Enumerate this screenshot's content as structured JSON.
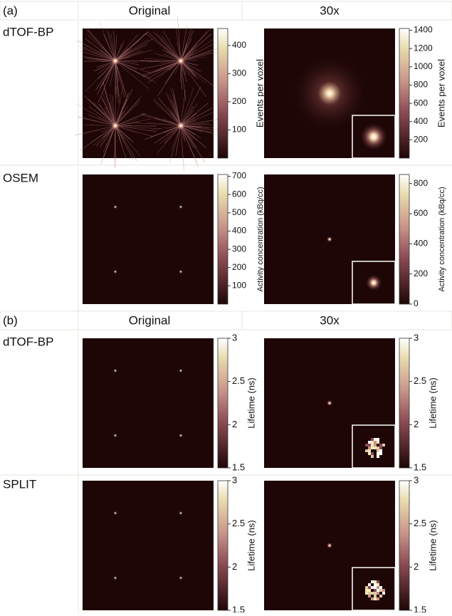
{
  "panels": [
    {
      "label": "(a)",
      "columns": [
        "Original",
        "30x"
      ],
      "rows": [
        {
          "name": "dTOF-BP",
          "colorbars": [
            {
              "label": "Events per voxel",
              "lim": [
                0,
                460
              ],
              "ticks": [
                100,
                200,
                300,
                400
              ]
            },
            {
              "label": "Events per voxel",
              "lim": [
                0,
                1420
              ],
              "ticks": [
                200,
                400,
                600,
                800,
                1000,
                1200,
                1400
              ]
            }
          ]
        },
        {
          "name": "OSEM",
          "colorbars": [
            {
              "label": "Activity concentration (kBq/cc)",
              "lim": [
                0,
                710
              ],
              "ticks": [
                100,
                200,
                300,
                400,
                500,
                600,
                700
              ]
            },
            {
              "label": "Activity concentration (kBq/cc)",
              "lim": [
                0,
                860
              ],
              "ticks": [
                0,
                200,
                400,
                600,
                800
              ]
            }
          ]
        }
      ]
    },
    {
      "label": "(b)",
      "columns": [
        "Original",
        "30x"
      ],
      "rows": [
        {
          "name": "dTOF-BP",
          "colorbars": [
            {
              "label": "Lifetime (ns)",
              "lim": [
                1.5,
                3
              ],
              "ticks": [
                1.5,
                2,
                2.5,
                3
              ]
            },
            {
              "label": "Lifetime (ns)",
              "lim": [
                1.5,
                3
              ],
              "ticks": [
                1.5,
                2,
                2.5,
                3
              ]
            }
          ]
        },
        {
          "name": "SPLIT",
          "colorbars": [
            {
              "label": "Lifetime (ns)",
              "lim": [
                1.5,
                3
              ],
              "ticks": [
                1.5,
                2,
                2.5,
                3
              ]
            },
            {
              "label": "Lifetime (ns)",
              "lim": [
                1.5,
                3
              ],
              "ticks": [
                1.5,
                2,
                2.5,
                3
              ]
            }
          ]
        }
      ]
    }
  ]
}
